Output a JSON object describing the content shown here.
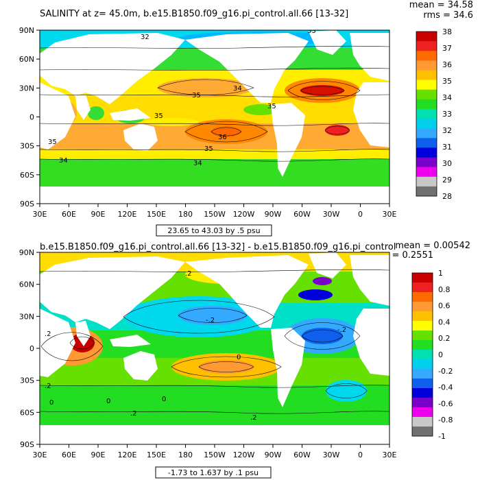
{
  "panel_top": {
    "title": "SALINITY at z=  45.0m, b.e15.B1850.f09_g16.pi_control.all.66 [13-32]",
    "stats_mean": "mean = 34.58",
    "stats_rms": "rms = 34.6",
    "range_label": "23.65 to 43.03 by .5 psu"
  },
  "panel_bottom": {
    "title": "b.e15.B1850.f09_g16.pi_control.all.66 [13-32] - b.e15.B1850.f09_g16.pi_control",
    "stats_mean": "mean = 0.00542",
    "stats_rms": "rms = 0.2551",
    "range_label": "-1.73 to 1.637 by .1 psu"
  },
  "chart_data": [
    {
      "type": "heatmap",
      "title": "SALINITY at z=  45.0m, b.e15.B1850.f09_g16.pi_control.all.66 [13-32]",
      "units": "psu",
      "x_ticks": [
        "30E",
        "60E",
        "90E",
        "120E",
        "150E",
        "180",
        "150W",
        "120W",
        "90W",
        "60W",
        "30W",
        "0",
        "30E"
      ],
      "y_ticks": [
        "90N",
        "60N",
        "30N",
        "0",
        "30S",
        "60S",
        "90S"
      ],
      "xlim": [
        30,
        390
      ],
      "ylim": [
        -90,
        90
      ],
      "contour_labels": [
        "32",
        "33",
        "34",
        "35",
        "35",
        "35",
        "35",
        "36",
        "34",
        "34",
        "35"
      ],
      "colorbar": {
        "labels": [
          "38",
          "37",
          "36",
          "35",
          "34",
          "33",
          "32",
          "31",
          "30",
          "29",
          "28"
        ],
        "colors": [
          "#c80000",
          "#ee2020",
          "#ff6a00",
          "#ff9933",
          "#ffc000",
          "#ffff00",
          "#66e000",
          "#22dd22",
          "#00e0b0",
          "#00d0ee",
          "#33aaff",
          "#1060ee",
          "#0000dd",
          "#7a00cc",
          "#ee00ee",
          "#c8c8c8",
          "#707070"
        ]
      },
      "range": "23.65 to 43.03 by .5 psu",
      "mean": 34.58,
      "rms": 34.6
    },
    {
      "type": "heatmap",
      "title": "b.e15.B1850.f09_g16.pi_control.all.66 [13-32] - b.e15.B1850.f09_g16.pi_control",
      "units": "psu",
      "x_ticks": [
        "30E",
        "60E",
        "90E",
        "120E",
        "150E",
        "180",
        "150W",
        "120W",
        "90W",
        "60W",
        "30W",
        "0",
        "30E"
      ],
      "y_ticks": [
        "90N",
        "60N",
        "30N",
        "0",
        "30S",
        "60S",
        "90S"
      ],
      "xlim": [
        30,
        390
      ],
      "ylim": [
        -90,
        90
      ],
      "contour_labels": [
        ".2",
        "-.2",
        "0",
        ".2",
        "0",
        ".2",
        "0",
        ".2",
        "-.2",
        "0",
        ".2"
      ],
      "colorbar": {
        "labels": [
          "1",
          "0.8",
          "0.6",
          "0.4",
          "0.2",
          "0",
          "-0.2",
          "-0.4",
          "-0.6",
          "-0.8",
          "-1"
        ],
        "colors": [
          "#c80000",
          "#ee2020",
          "#ff6a00",
          "#ff9933",
          "#ffc000",
          "#ffff00",
          "#66e000",
          "#22dd22",
          "#00e0b0",
          "#00d0ee",
          "#33aaff",
          "#1060ee",
          "#0000dd",
          "#7a00cc",
          "#ee00ee",
          "#c8c8c8",
          "#707070"
        ]
      },
      "range": "-1.73 to 1.637 by .1 psu",
      "mean": 0.00542,
      "rms": 0.2551
    }
  ]
}
